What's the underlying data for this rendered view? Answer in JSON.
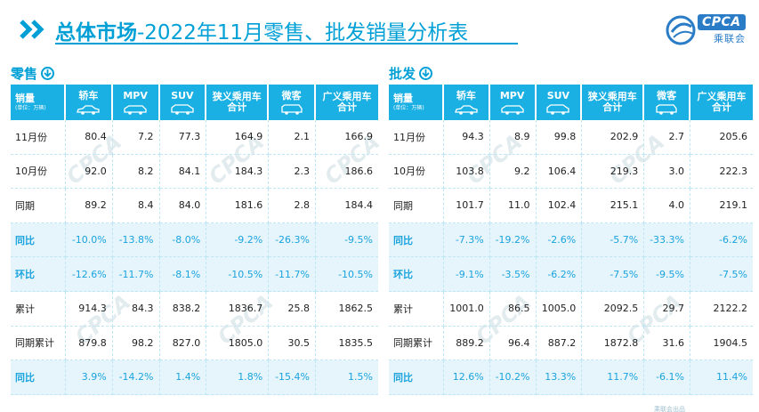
{
  "header": {
    "title_main": "总体市场",
    "title_rest": "-2022年11月零售、批发销量分析表",
    "logo_text": "CPCA",
    "logo_sub": "乘联会"
  },
  "colors": {
    "accent": "#00a0d6",
    "header_fill": "#1ab0e3",
    "pct_row_bg": "#e6f5fc",
    "pct_text": "#1aa3dd"
  },
  "retail": {
    "title": "零售",
    "head_label": "销量",
    "head_unit": "(单位：万辆)",
    "columns": [
      "轿车",
      "MPV",
      "SUV",
      "狭义乘用车\n合计",
      "微客",
      "广义乘用车\n合计"
    ],
    "rows": [
      {
        "label": "11月份",
        "pct": false,
        "values": [
          "80.4",
          "7.2",
          "77.3",
          "164.9",
          "2.1",
          "166.9"
        ]
      },
      {
        "label": "10月份",
        "pct": false,
        "values": [
          "92.0",
          "8.2",
          "84.1",
          "184.3",
          "2.3",
          "186.6"
        ]
      },
      {
        "label": "同期",
        "pct": false,
        "values": [
          "89.2",
          "8.4",
          "84.0",
          "181.6",
          "2.8",
          "184.4"
        ]
      },
      {
        "label": "同比",
        "pct": true,
        "values": [
          "-10.0%",
          "-13.8%",
          "-8.0%",
          "-9.2%",
          "-26.3%",
          "-9.5%"
        ]
      },
      {
        "label": "环比",
        "pct": true,
        "values": [
          "-12.6%",
          "-11.7%",
          "-8.1%",
          "-10.5%",
          "-11.7%",
          "-10.5%"
        ]
      },
      {
        "label": "累计",
        "pct": false,
        "values": [
          "914.3",
          "84.3",
          "838.2",
          "1836.7",
          "25.8",
          "1862.5"
        ]
      },
      {
        "label": "同期累计",
        "pct": false,
        "values": [
          "879.8",
          "98.2",
          "827.0",
          "1805.0",
          "30.5",
          "1835.5"
        ]
      },
      {
        "label": "同比",
        "pct": true,
        "values": [
          "3.9%",
          "-14.2%",
          "1.4%",
          "1.8%",
          "-15.4%",
          "1.5%"
        ]
      }
    ]
  },
  "wholesale": {
    "title": "批发",
    "head_label": "销量",
    "head_unit": "(单位：万辆)",
    "columns": [
      "轿车",
      "MPV",
      "SUV",
      "狭义乘用车\n合计",
      "微客",
      "广义乘用车\n合计"
    ],
    "rows": [
      {
        "label": "11月份",
        "pct": false,
        "values": [
          "94.3",
          "8.9",
          "99.8",
          "202.9",
          "2.7",
          "205.6"
        ]
      },
      {
        "label": "10月份",
        "pct": false,
        "values": [
          "103.8",
          "9.2",
          "106.4",
          "219.3",
          "3.0",
          "222.3"
        ]
      },
      {
        "label": "同期",
        "pct": false,
        "values": [
          "101.7",
          "11.0",
          "102.4",
          "215.1",
          "4.0",
          "219.1"
        ]
      },
      {
        "label": "同比",
        "pct": true,
        "values": [
          "-7.3%",
          "-19.2%",
          "-2.6%",
          "-5.7%",
          "-33.3%",
          "-6.2%"
        ]
      },
      {
        "label": "环比",
        "pct": true,
        "values": [
          "-9.1%",
          "-3.5%",
          "-6.2%",
          "-7.5%",
          "-9.5%",
          "-7.5%"
        ]
      },
      {
        "label": "累计",
        "pct": false,
        "values": [
          "1001.0",
          "86.5",
          "1005.0",
          "2092.5",
          "29.7",
          "2122.2"
        ]
      },
      {
        "label": "同期累计",
        "pct": false,
        "values": [
          "889.2",
          "96.4",
          "887.2",
          "1872.8",
          "31.6",
          "1904.5"
        ]
      },
      {
        "label": "同比",
        "pct": true,
        "values": [
          "12.6%",
          "-10.2%",
          "13.3%",
          "11.7%",
          "-6.1%",
          "11.4%"
        ]
      }
    ]
  },
  "watermark_text": "CPCA 乘联会",
  "footer_text": "乘联会出品"
}
